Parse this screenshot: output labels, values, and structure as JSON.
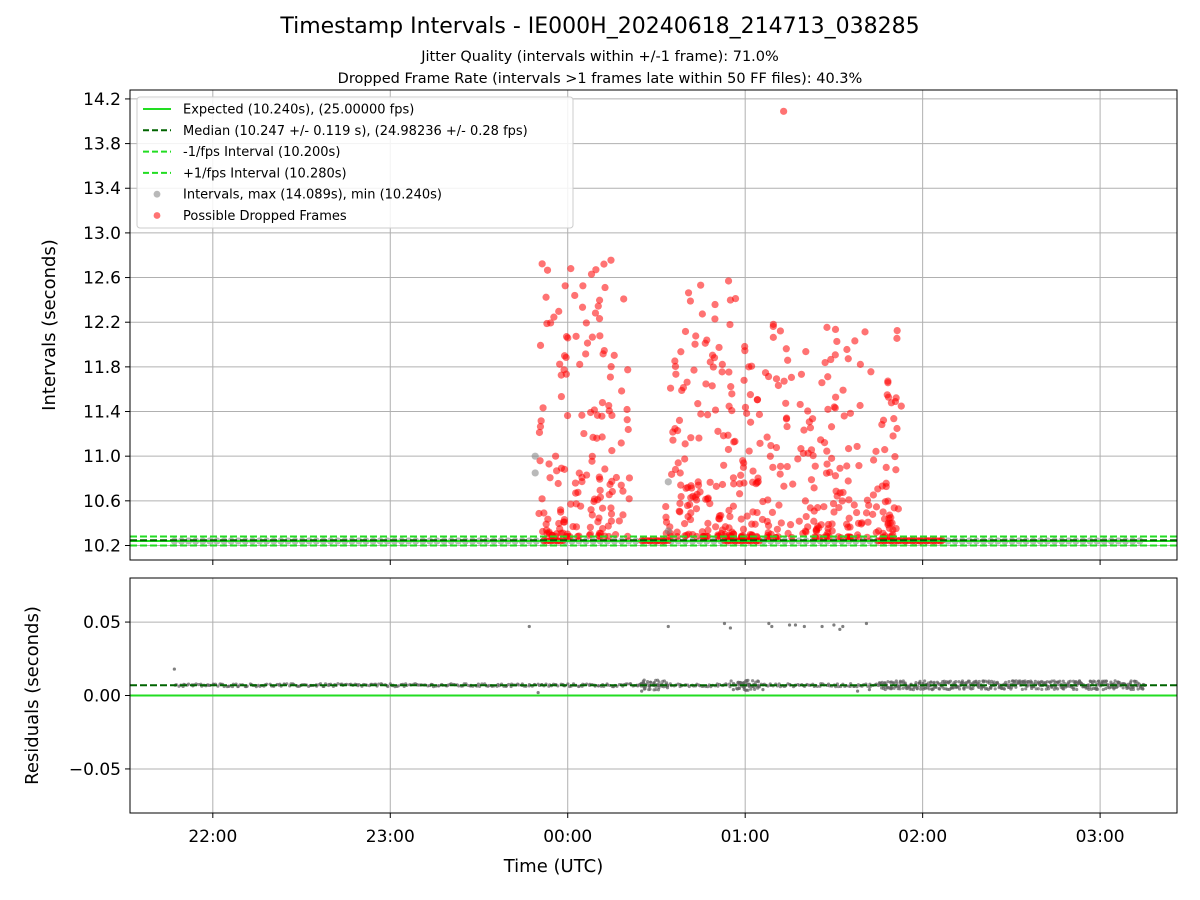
{
  "figure": {
    "title": "Timestamp Intervals - IE000H_20240618_214713_038285",
    "subtitle_1": "Jitter Quality (intervals within +/-1 frame): 71.0%",
    "subtitle_2": "Dropped Frame Rate (intervals >1 frames late within 50 FF files): 40.3%"
  },
  "chart_data": [
    {
      "type": "scatter",
      "panel": "intervals",
      "ylabel": "Intervals (seconds)",
      "xlabel": "",
      "xlim": [
        "21:32",
        "03:26"
      ],
      "ylim": [
        10.07,
        14.28
      ],
      "yticks": [
        10.2,
        10.6,
        11.0,
        11.4,
        11.8,
        12.2,
        12.6,
        13.0,
        13.4,
        13.8,
        14.2
      ],
      "ytick_labels": [
        "10.2",
        "10.6",
        "11.0",
        "11.4",
        "11.8",
        "12.2",
        "12.6",
        "13.0",
        "13.4",
        "13.8",
        "14.2"
      ],
      "grid": true,
      "legend_position": "top-left",
      "legend": [
        "Expected (10.240s), (25.00000 fps)",
        "Median (10.247 +/- 0.119 s), (24.98236 +/- 0.28 fps)",
        "-1/fps Interval (10.200s)",
        "+1/fps Interval (10.280s)",
        "Intervals, max (14.089s), min (10.240s)",
        "Possible Dropped Frames"
      ],
      "reference_lines": [
        {
          "y": 10.24,
          "style": "solid",
          "color": "#22dd22"
        },
        {
          "y": 10.247,
          "style": "dashed",
          "color": "#006400"
        },
        {
          "y": 10.2,
          "style": "dashed",
          "color": "#22dd22"
        },
        {
          "y": 10.28,
          "style": "dashed",
          "color": "#22dd22"
        }
      ],
      "normal_points_time_range": [
        "21:47",
        "03:15"
      ],
      "normal_points_value": 10.24,
      "dropped_point_clusters": [
        {
          "x_start": "23:50",
          "x_end": "00:21",
          "y_min": 10.28,
          "y_max": 12.77,
          "count": 160
        },
        {
          "x_start": "00:33",
          "x_end": "00:57",
          "y_min": 10.28,
          "y_max": 12.58,
          "count": 140
        },
        {
          "x_start": "00:58",
          "x_end": "01:53",
          "y_min": 10.27,
          "y_max": 12.3,
          "count": 260
        }
      ],
      "baseline_dropped_runs": [
        [
          "23:52",
          "23:59"
        ],
        [
          "00:25",
          "00:34"
        ],
        [
          "00:53",
          "01:05"
        ],
        [
          "01:45",
          "02:07"
        ]
      ],
      "gray_points": [
        {
          "x": "23:49",
          "y": 11.0
        },
        {
          "x": "23:49",
          "y": 10.85
        },
        {
          "x": "00:34",
          "y": 10.77
        },
        {
          "x": "00:34",
          "y": 10.33
        }
      ],
      "outlier_point": {
        "x": "01:13",
        "y": 14.089
      }
    },
    {
      "type": "scatter",
      "panel": "residuals",
      "ylabel": "Residuals (seconds)",
      "xlabel": "Time (UTC)",
      "xlim": [
        "21:32",
        "03:26"
      ],
      "ylim": [
        -0.08,
        0.08
      ],
      "yticks": [
        -0.05,
        0.0,
        0.05
      ],
      "ytick_labels": [
        "−0.05",
        "0.00",
        "0.05"
      ],
      "xticks": [
        "22:00",
        "23:00",
        "00:00",
        "01:00",
        "02:00",
        "03:00"
      ],
      "grid": true,
      "reference_lines": [
        {
          "y": 0.0,
          "style": "solid",
          "color": "#22dd22"
        },
        {
          "y": 0.007,
          "style": "dashed",
          "color": "#006400"
        }
      ],
      "residual_band_value": 0.007,
      "residual_time_range": [
        "21:47",
        "03:15"
      ],
      "residual_points": [
        {
          "x": "21:47",
          "y": 0.018
        },
        {
          "x": "23:47",
          "y": 0.047
        },
        {
          "x": "23:50",
          "y": 0.002
        },
        {
          "x": "00:34",
          "y": 0.047
        },
        {
          "x": "00:53",
          "y": 0.049
        },
        {
          "x": "00:55",
          "y": 0.046
        },
        {
          "x": "01:08",
          "y": 0.049
        },
        {
          "x": "01:09",
          "y": 0.047
        },
        {
          "x": "01:15",
          "y": 0.048
        },
        {
          "x": "01:17",
          "y": 0.048
        },
        {
          "x": "01:20",
          "y": 0.047
        },
        {
          "x": "01:26",
          "y": 0.047
        },
        {
          "x": "01:30",
          "y": 0.048
        },
        {
          "x": "01:32",
          "y": 0.045
        },
        {
          "x": "01:33",
          "y": 0.047
        },
        {
          "x": "01:41",
          "y": 0.049
        },
        {
          "x": "00:25",
          "y": 0.003
        },
        {
          "x": "00:56",
          "y": 0.004
        },
        {
          "x": "01:06",
          "y": 0.004
        },
        {
          "x": "01:42",
          "y": 0.004
        },
        {
          "x": "01:38",
          "y": 0.003
        }
      ]
    }
  ]
}
